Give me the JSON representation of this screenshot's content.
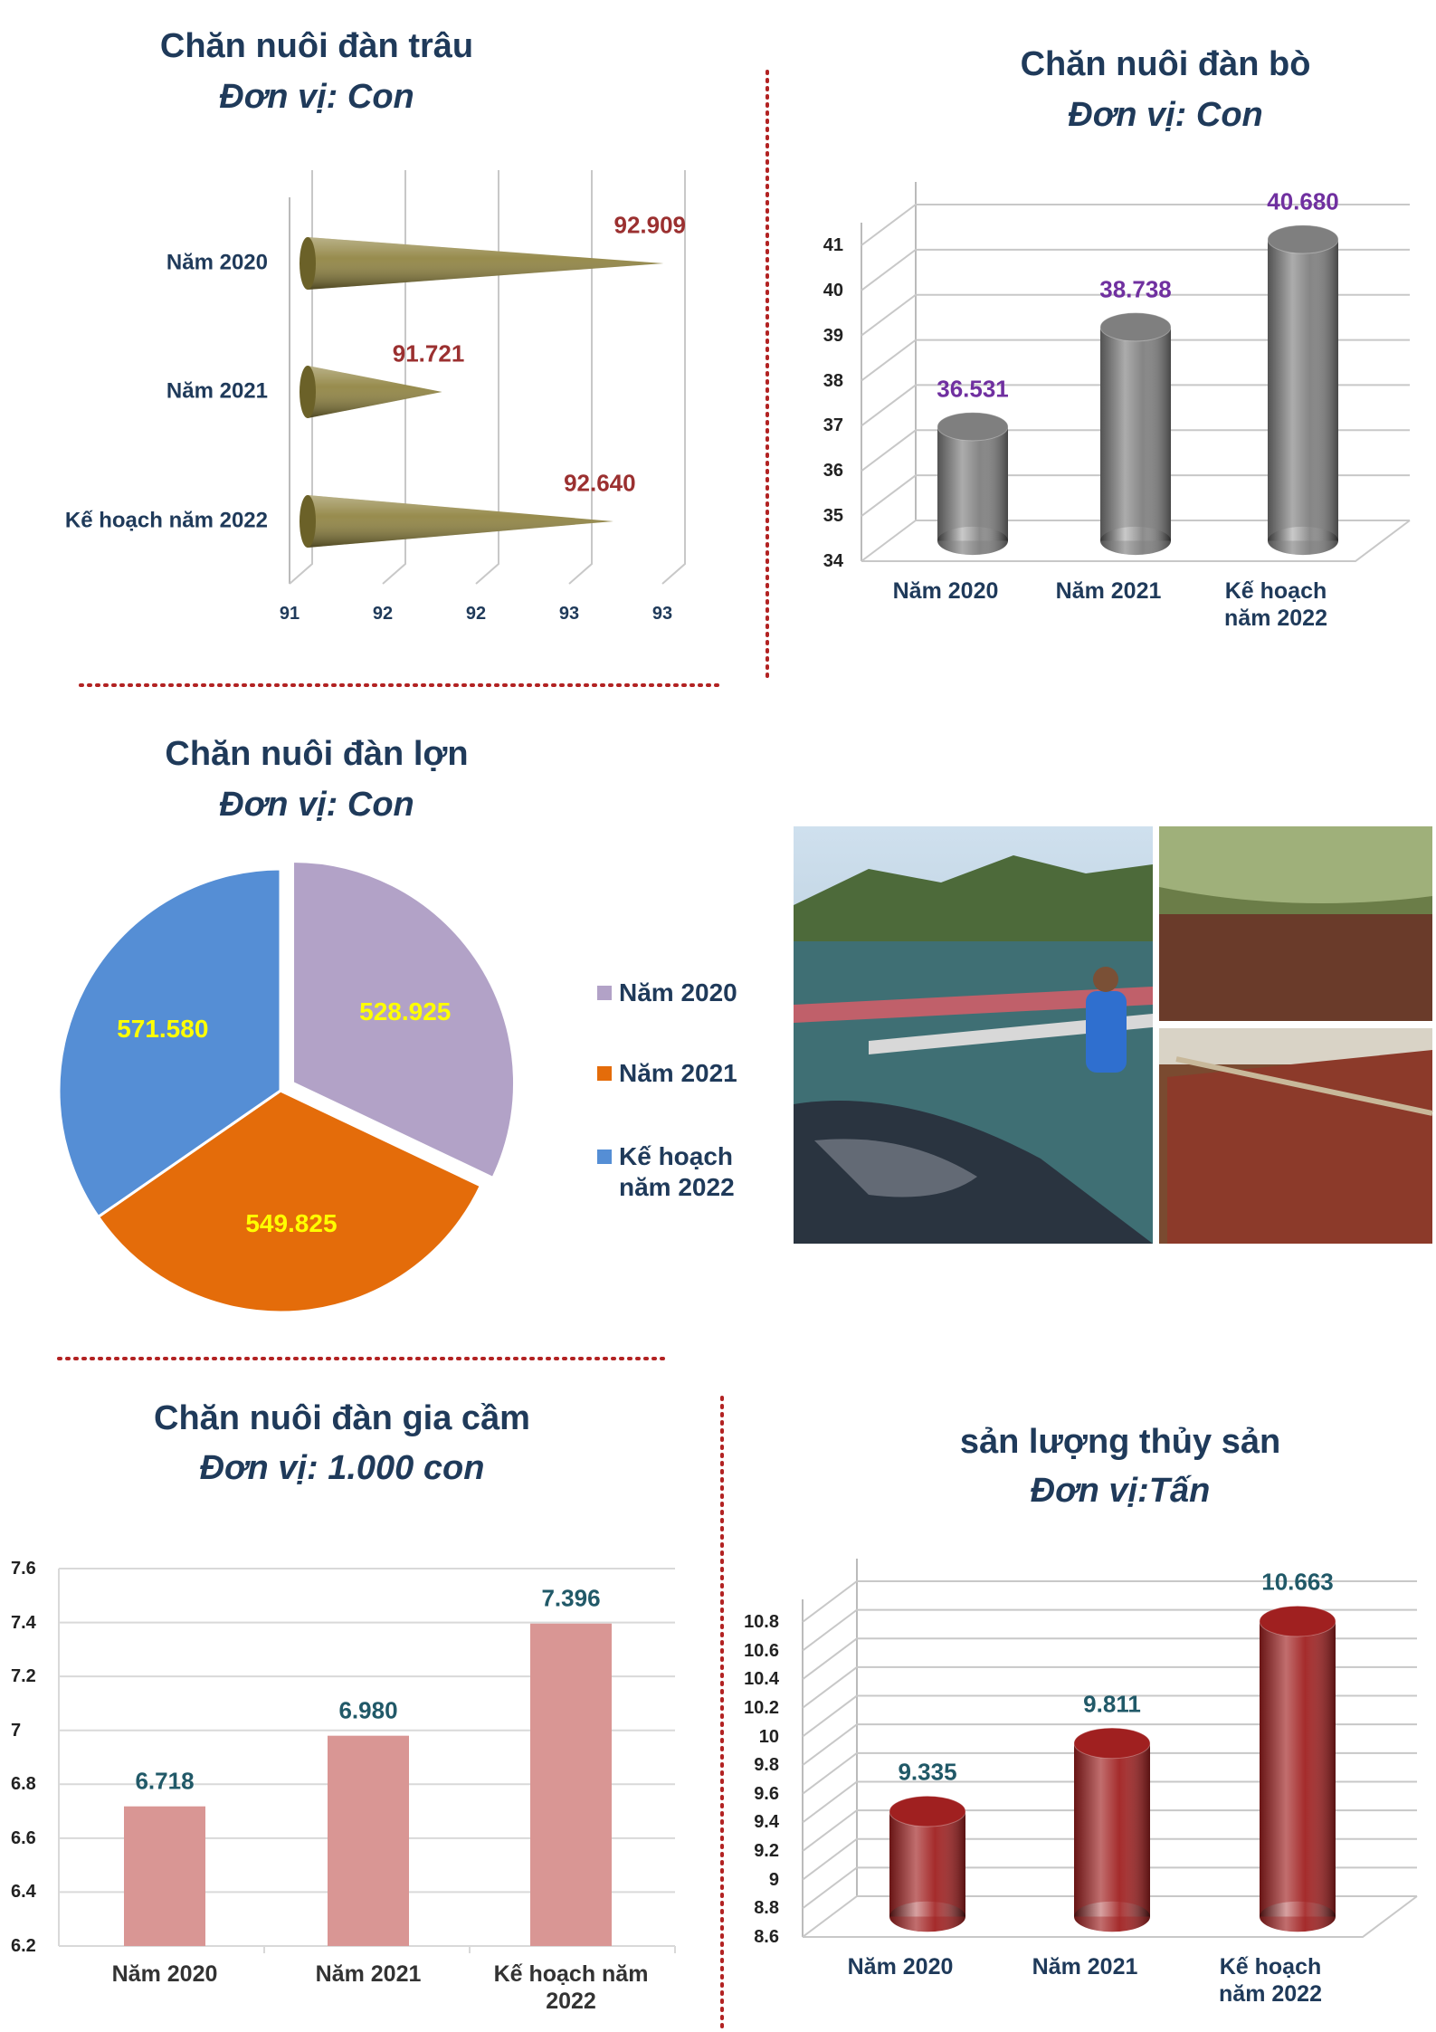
{
  "chart_data": [
    {
      "type": "cone",
      "title": "Chăn nuôi đàn trâu",
      "subtitle": "Đơn vị: Con",
      "categories": [
        "Năm 2020",
        "Năm 2021",
        "Kế hoạch năm 2022"
      ],
      "values": [
        92.909,
        91.721,
        92.64
      ],
      "value_labels": [
        "92.909",
        "91.721",
        "92.640"
      ],
      "color": "#8c7f3a",
      "label_color": "#9b3030",
      "xlim": [
        91,
        93
      ],
      "xticks": [
        91,
        {
          "value": 91.5,
          "label": "92"
        },
        92,
        {
          "value": 92.5,
          "label": "93"
        },
        93
      ]
    },
    {
      "type": "cylinder",
      "title": "Chăn nuôi đàn bò",
      "subtitle": "Đơn vị: Con",
      "categories": [
        "Năm 2020",
        "Năm 2021",
        "Kế hoạch năm 2022"
      ],
      "values": [
        36.531,
        38.738,
        40.68
      ],
      "value_labels": [
        "36.531",
        "38.738",
        "40.680"
      ],
      "color": "#7f7f7f",
      "label_color": "#7030a0",
      "ylim": [
        34,
        41
      ],
      "yticks": [
        34,
        35,
        36,
        37,
        38,
        39,
        40,
        41
      ]
    },
    {
      "type": "pie",
      "title": "Chăn nuôi đàn lợn",
      "subtitle": "Đơn vị: Con",
      "categories": [
        "Năm 2020",
        "Năm 2021",
        "Kế hoạch năm 2022"
      ],
      "values": [
        528925,
        549825,
        571580
      ],
      "value_labels": [
        "528.925",
        "549.825",
        "571.580"
      ],
      "colors": [
        "#b2a2c7",
        "#e46c0a",
        "#558ed5"
      ],
      "label_color": "#ffff00",
      "legend": "right"
    },
    {
      "type": "bar",
      "title": "Chăn nuôi đàn gia cầm",
      "subtitle": "Đơn vị: 1.000 con",
      "categories": [
        "Năm 2020",
        "Năm 2021",
        "Kế hoạch năm 2022"
      ],
      "values": [
        6.718,
        6.98,
        7.396
      ],
      "value_labels": [
        "6.718",
        "6.980",
        "7.396"
      ],
      "color": "#d99694",
      "label_color": "#215968",
      "ylim": [
        6.2,
        7.6
      ],
      "yticks": [
        6.2,
        6.4,
        6.6,
        6.8,
        7,
        7.2,
        7.4,
        7.6
      ],
      "grid": true
    },
    {
      "type": "cylinder",
      "title": "sản lượng thủy sản",
      "subtitle": "Đơn vị:Tấn",
      "categories": [
        "Năm 2020",
        "Năm 2021",
        "Kế hoạch năm 2022"
      ],
      "values": [
        9.335,
        9.811,
        10.663
      ],
      "value_labels": [
        "9.335",
        "9.811",
        "10.663"
      ],
      "color": "#a02020",
      "label_color": "#215968",
      "ylim": [
        8.6,
        10.8
      ],
      "yticks": [
        8.6,
        8.8,
        9,
        9.2,
        9.4,
        9.6,
        9.8,
        10,
        10.2,
        10.4,
        10.6,
        10.8
      ]
    }
  ]
}
